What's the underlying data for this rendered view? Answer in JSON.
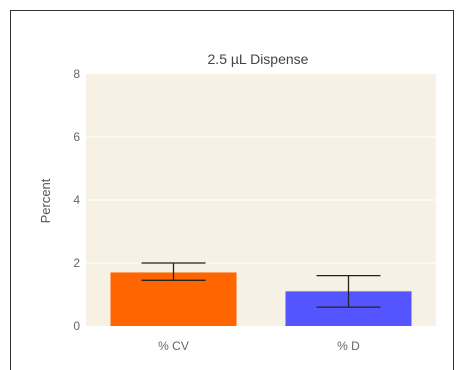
{
  "chart_data": {
    "type": "bar",
    "title": "2.5 µL Dispense",
    "xlabel": "",
    "ylabel": "Percent",
    "ylim": [
      0,
      8
    ],
    "yticks": [
      0,
      2,
      4,
      6,
      8
    ],
    "categories": [
      "% CV",
      "% D"
    ],
    "values": [
      1.7,
      1.1
    ],
    "error_low": [
      1.45,
      0.6
    ],
    "error_high": [
      2.0,
      1.6
    ],
    "bar_colors": [
      "#ff6600",
      "#5555ff"
    ],
    "plot_background": "#f7f0e4",
    "grid": true,
    "grid_color": "#ffffff",
    "error_bar_color": "#222222"
  }
}
